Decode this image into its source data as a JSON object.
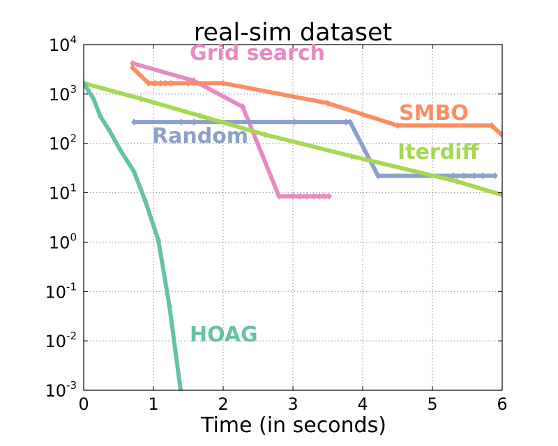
{
  "chart_data": {
    "type": "line",
    "title": "real-sim dataset",
    "xlabel": "Time (in seconds)",
    "ylabel": "",
    "y_scale": "log",
    "xlim": [
      0,
      6
    ],
    "ylim": [
      0.001,
      10000
    ],
    "grid": true,
    "x_ticks": [
      "0",
      "1",
      "2",
      "3",
      "4",
      "5",
      "6"
    ],
    "y_ticks": [
      {
        "base": "10",
        "exp": "-3",
        "value": 0.001
      },
      {
        "base": "10",
        "exp": "-2",
        "value": 0.01
      },
      {
        "base": "10",
        "exp": "-1",
        "value": 0.1
      },
      {
        "base": "10",
        "exp": "0",
        "value": 1
      },
      {
        "base": "10",
        "exp": "1",
        "value": 10
      },
      {
        "base": "10",
        "exp": "2",
        "value": 100
      },
      {
        "base": "10",
        "exp": "3",
        "value": 1000
      },
      {
        "base": "10",
        "exp": "4",
        "value": 10000
      }
    ],
    "series": [
      {
        "name": "Grid search",
        "color": "#e78ac3",
        "x": [
          0.7,
          1.58,
          2.28,
          2.8,
          3.0,
          3.1,
          3.2,
          3.3,
          3.38,
          3.45,
          3.52
        ],
        "y": [
          4200,
          1850,
          550,
          8.5,
          8.5,
          8.5,
          8.5,
          8.5,
          8.5,
          8.5,
          8.5
        ]
      },
      {
        "name": "SMBO",
        "color": "#fc8d62",
        "x": [
          0.7,
          0.93,
          1.02,
          1.1,
          1.17,
          1.25,
          1.5,
          2.0,
          3.5,
          4.5,
          5.85,
          6.0
        ],
        "y": [
          3400,
          1650,
          1650,
          1650,
          1650,
          1650,
          1650,
          1650,
          650,
          230,
          230,
          145
        ]
      },
      {
        "name": "Random",
        "color": "#8da0cb",
        "x": [
          0.72,
          1.4,
          1.58,
          3.02,
          3.76,
          3.82,
          4.22,
          5.3,
          5.45,
          5.6,
          5.72,
          5.9
        ],
        "y": [
          270,
          270,
          270,
          270,
          270,
          270,
          22,
          22,
          22,
          22,
          22,
          22
        ]
      },
      {
        "name": "Iterdiff",
        "color": "#a6d854",
        "x": [
          0.0,
          0.82,
          1.67,
          2.6,
          3.84,
          5.35,
          6.0
        ],
        "y": [
          1650,
          800,
          360,
          150,
          55,
          17,
          9
        ]
      },
      {
        "name": "HOAG",
        "color": "#66c2a5",
        "x": [
          0.0,
          0.14,
          0.24,
          0.37,
          0.52,
          0.72,
          0.88,
          1.07,
          1.23,
          1.39
        ],
        "y": [
          1650,
          800,
          350,
          180,
          75,
          27,
          7,
          1.1,
          0.05,
          0.001
        ]
      }
    ],
    "annotations": [
      {
        "text": "Grid search",
        "color": "#e78ac3",
        "series": "Grid search"
      },
      {
        "text": "SMBO",
        "color": "#fc8d62",
        "series": "SMBO"
      },
      {
        "text": "Random",
        "color": "#8da0cb",
        "series": "Random"
      },
      {
        "text": "Iterdiff",
        "color": "#a6d854",
        "series": "Iterdiff"
      },
      {
        "text": "HOAG",
        "color": "#66c2a5",
        "series": "HOAG"
      }
    ]
  }
}
